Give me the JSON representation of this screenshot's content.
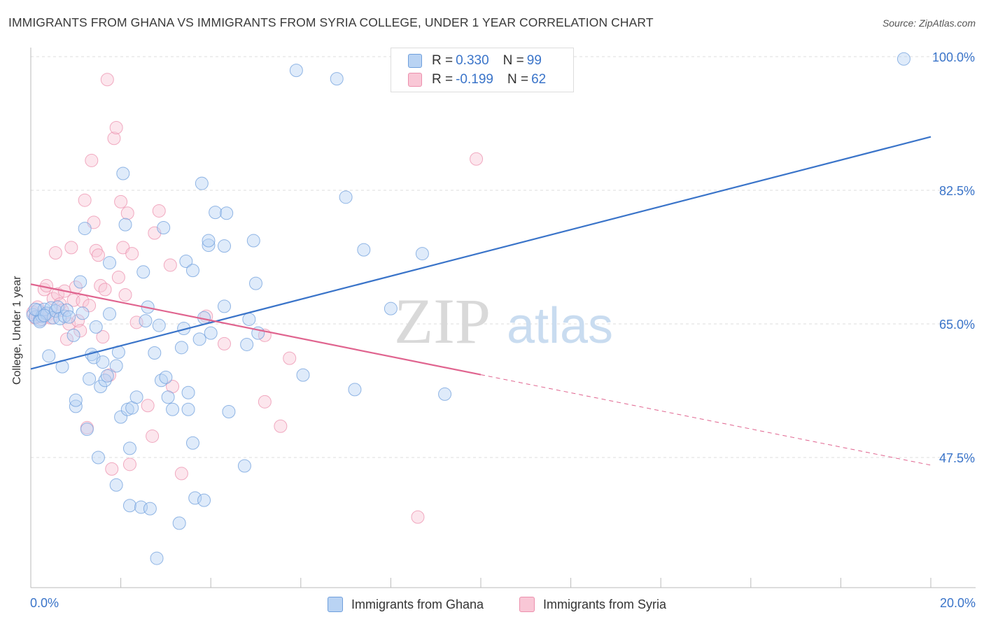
{
  "title": "IMMIGRANTS FROM GHANA VS IMMIGRANTS FROM SYRIA COLLEGE, UNDER 1 YEAR CORRELATION CHART",
  "source": "Source: ZipAtlas.com",
  "colors": {
    "blue": "#3a74c9",
    "blue_fill": "#b9d3f3",
    "pink": "#e0648f",
    "pink_fill": "#f9c7d6",
    "grid": "#dcdcdc"
  },
  "stats": {
    "blue": {
      "r_label": "R =",
      "r_value": "0.330",
      "n_label": "N =",
      "n_value": "99"
    },
    "pink": {
      "r_label": "R =",
      "r_value": "-0.199",
      "n_label": "N =",
      "n_value": "62"
    }
  },
  "legend": {
    "blue": "Immigrants from Ghana",
    "pink": "Immigrants from Syria"
  },
  "watermark": {
    "zip": "ZIP",
    "atlas": "atlas"
  },
  "chart_data": {
    "type": "scatter",
    "xlabel": "",
    "ylabel": "College, Under 1 year",
    "xlim": [
      0,
      20
    ],
    "ylim": [
      32,
      101.5
    ],
    "x_tick_labels": {
      "min": "0.0%",
      "max": "20.0%"
    },
    "y_ticks": [
      47.5,
      65.0,
      82.5,
      100.0
    ],
    "y_tick_labels": [
      "47.5%",
      "65.0%",
      "82.5%",
      "100.0%"
    ],
    "series": [
      {
        "name": "Immigrants from Ghana",
        "color": "#3a74c9",
        "trend": {
          "x": [
            0,
            20
          ],
          "y": [
            59.1,
            89.5
          ],
          "dashed_from": null
        },
        "points": [
          [
            0.05,
            66.2
          ],
          [
            0.1,
            65.9
          ],
          [
            0.15,
            66.8
          ],
          [
            0.2,
            65.5
          ],
          [
            0.25,
            66.0
          ],
          [
            0.3,
            66.9
          ],
          [
            0.35,
            66.4
          ],
          [
            0.4,
            60.8
          ],
          [
            0.45,
            67.1
          ],
          [
            0.5,
            65.8
          ],
          [
            0.55,
            66.7
          ],
          [
            0.6,
            67.2
          ],
          [
            0.65,
            65.7
          ],
          [
            0.7,
            59.4
          ],
          [
            0.75,
            66.0
          ],
          [
            0.8,
            66.8
          ],
          [
            0.85,
            65.9
          ],
          [
            0.95,
            63.5
          ],
          [
            1.0,
            54.2
          ],
          [
            1.0,
            55.0
          ],
          [
            1.1,
            70.5
          ],
          [
            1.15,
            66.4
          ],
          [
            1.2,
            77.5
          ],
          [
            1.25,
            51.2
          ],
          [
            1.3,
            57.8
          ],
          [
            1.35,
            61.0
          ],
          [
            1.4,
            60.6
          ],
          [
            1.45,
            64.6
          ],
          [
            1.5,
            47.5
          ],
          [
            1.55,
            56.8
          ],
          [
            1.6,
            60.0
          ],
          [
            1.65,
            57.6
          ],
          [
            1.7,
            58.2
          ],
          [
            1.75,
            66.3
          ],
          [
            1.75,
            73.0
          ],
          [
            1.9,
            59.5
          ],
          [
            1.95,
            61.3
          ],
          [
            1.9,
            43.9
          ],
          [
            2.0,
            52.8
          ],
          [
            2.05,
            84.7
          ],
          [
            2.1,
            78.0
          ],
          [
            2.15,
            53.8
          ],
          [
            2.2,
            41.2
          ],
          [
            2.2,
            48.7
          ],
          [
            2.25,
            54.0
          ],
          [
            2.35,
            55.4
          ],
          [
            2.45,
            41.0
          ],
          [
            2.5,
            71.8
          ],
          [
            2.55,
            65.4
          ],
          [
            2.6,
            67.2
          ],
          [
            2.65,
            40.8
          ],
          [
            2.75,
            61.2
          ],
          [
            2.8,
            34.3
          ],
          [
            2.85,
            64.8
          ],
          [
            2.9,
            57.6
          ],
          [
            2.95,
            77.6
          ],
          [
            3.0,
            58.0
          ],
          [
            3.05,
            55.4
          ],
          [
            3.15,
            53.8
          ],
          [
            3.3,
            38.9
          ],
          [
            3.35,
            61.9
          ],
          [
            3.4,
            64.4
          ],
          [
            3.45,
            73.2
          ],
          [
            3.5,
            56.0
          ],
          [
            3.5,
            53.8
          ],
          [
            3.6,
            72.0
          ],
          [
            3.6,
            49.4
          ],
          [
            3.65,
            42.2
          ],
          [
            3.75,
            63.0
          ],
          [
            3.8,
            83.4
          ],
          [
            3.85,
            65.8
          ],
          [
            3.85,
            41.9
          ],
          [
            3.95,
            75.3
          ],
          [
            3.95,
            75.9
          ],
          [
            4.0,
            63.8
          ],
          [
            4.1,
            79.6
          ],
          [
            4.3,
            67.3
          ],
          [
            4.3,
            75.2
          ],
          [
            4.35,
            79.5
          ],
          [
            4.4,
            53.5
          ],
          [
            4.75,
            46.4
          ],
          [
            4.8,
            62.3
          ],
          [
            4.85,
            65.6
          ],
          [
            4.95,
            75.9
          ],
          [
            5.0,
            70.3
          ],
          [
            5.05,
            63.8
          ],
          [
            5.9,
            98.2
          ],
          [
            6.05,
            58.3
          ],
          [
            6.8,
            97.1
          ],
          [
            7.0,
            81.6
          ],
          [
            7.2,
            56.4
          ],
          [
            7.4,
            74.7
          ],
          [
            8.0,
            67.0
          ],
          [
            8.7,
            74.2
          ],
          [
            9.2,
            55.8
          ],
          [
            19.4,
            99.7
          ],
          [
            0.1,
            66.9
          ],
          [
            0.2,
            65.3
          ],
          [
            0.3,
            66.1
          ]
        ]
      },
      {
        "name": "Immigrants from Syria",
        "color": "#e0648f",
        "trend": {
          "x": [
            0,
            20
          ],
          "y": [
            70.2,
            46.5
          ],
          "dashed_from": 10
        },
        "points": [
          [
            0.05,
            66.5
          ],
          [
            0.1,
            65.8
          ],
          [
            0.15,
            67.2
          ],
          [
            0.2,
            66.0
          ],
          [
            0.25,
            65.6
          ],
          [
            0.3,
            69.5
          ],
          [
            0.35,
            70.0
          ],
          [
            0.4,
            66.3
          ],
          [
            0.45,
            65.8
          ],
          [
            0.5,
            68.3
          ],
          [
            0.55,
            74.3
          ],
          [
            0.6,
            68.9
          ],
          [
            0.65,
            67.6
          ],
          [
            0.7,
            66.8
          ],
          [
            0.75,
            69.3
          ],
          [
            0.8,
            63.0
          ],
          [
            0.85,
            65.0
          ],
          [
            0.9,
            75.0
          ],
          [
            0.95,
            68.1
          ],
          [
            1.0,
            69.8
          ],
          [
            1.05,
            65.4
          ],
          [
            1.1,
            64.1
          ],
          [
            1.15,
            68.0
          ],
          [
            1.2,
            81.2
          ],
          [
            1.25,
            51.4
          ],
          [
            1.3,
            67.4
          ],
          [
            1.35,
            86.4
          ],
          [
            1.4,
            78.3
          ],
          [
            1.45,
            74.6
          ],
          [
            1.5,
            74.0
          ],
          [
            1.55,
            70.0
          ],
          [
            1.6,
            63.3
          ],
          [
            1.65,
            69.5
          ],
          [
            1.7,
            97.0
          ],
          [
            1.75,
            58.3
          ],
          [
            1.8,
            46.0
          ],
          [
            1.85,
            89.3
          ],
          [
            1.9,
            90.7
          ],
          [
            1.95,
            71.1
          ],
          [
            2.0,
            81.0
          ],
          [
            2.05,
            75.0
          ],
          [
            2.1,
            68.8
          ],
          [
            2.15,
            79.5
          ],
          [
            2.2,
            46.6
          ],
          [
            2.25,
            74.2
          ],
          [
            2.35,
            65.2
          ],
          [
            2.6,
            54.3
          ],
          [
            2.7,
            50.3
          ],
          [
            2.75,
            76.9
          ],
          [
            2.85,
            79.8
          ],
          [
            3.15,
            56.8
          ],
          [
            3.1,
            72.7
          ],
          [
            3.35,
            45.4
          ],
          [
            3.9,
            66.0
          ],
          [
            4.3,
            62.4
          ],
          [
            5.2,
            63.5
          ],
          [
            5.2,
            54.8
          ],
          [
            5.55,
            51.6
          ],
          [
            5.75,
            60.5
          ],
          [
            8.6,
            39.7
          ],
          [
            9.9,
            86.6
          ],
          [
            0.15,
            66.0
          ]
        ]
      }
    ]
  }
}
